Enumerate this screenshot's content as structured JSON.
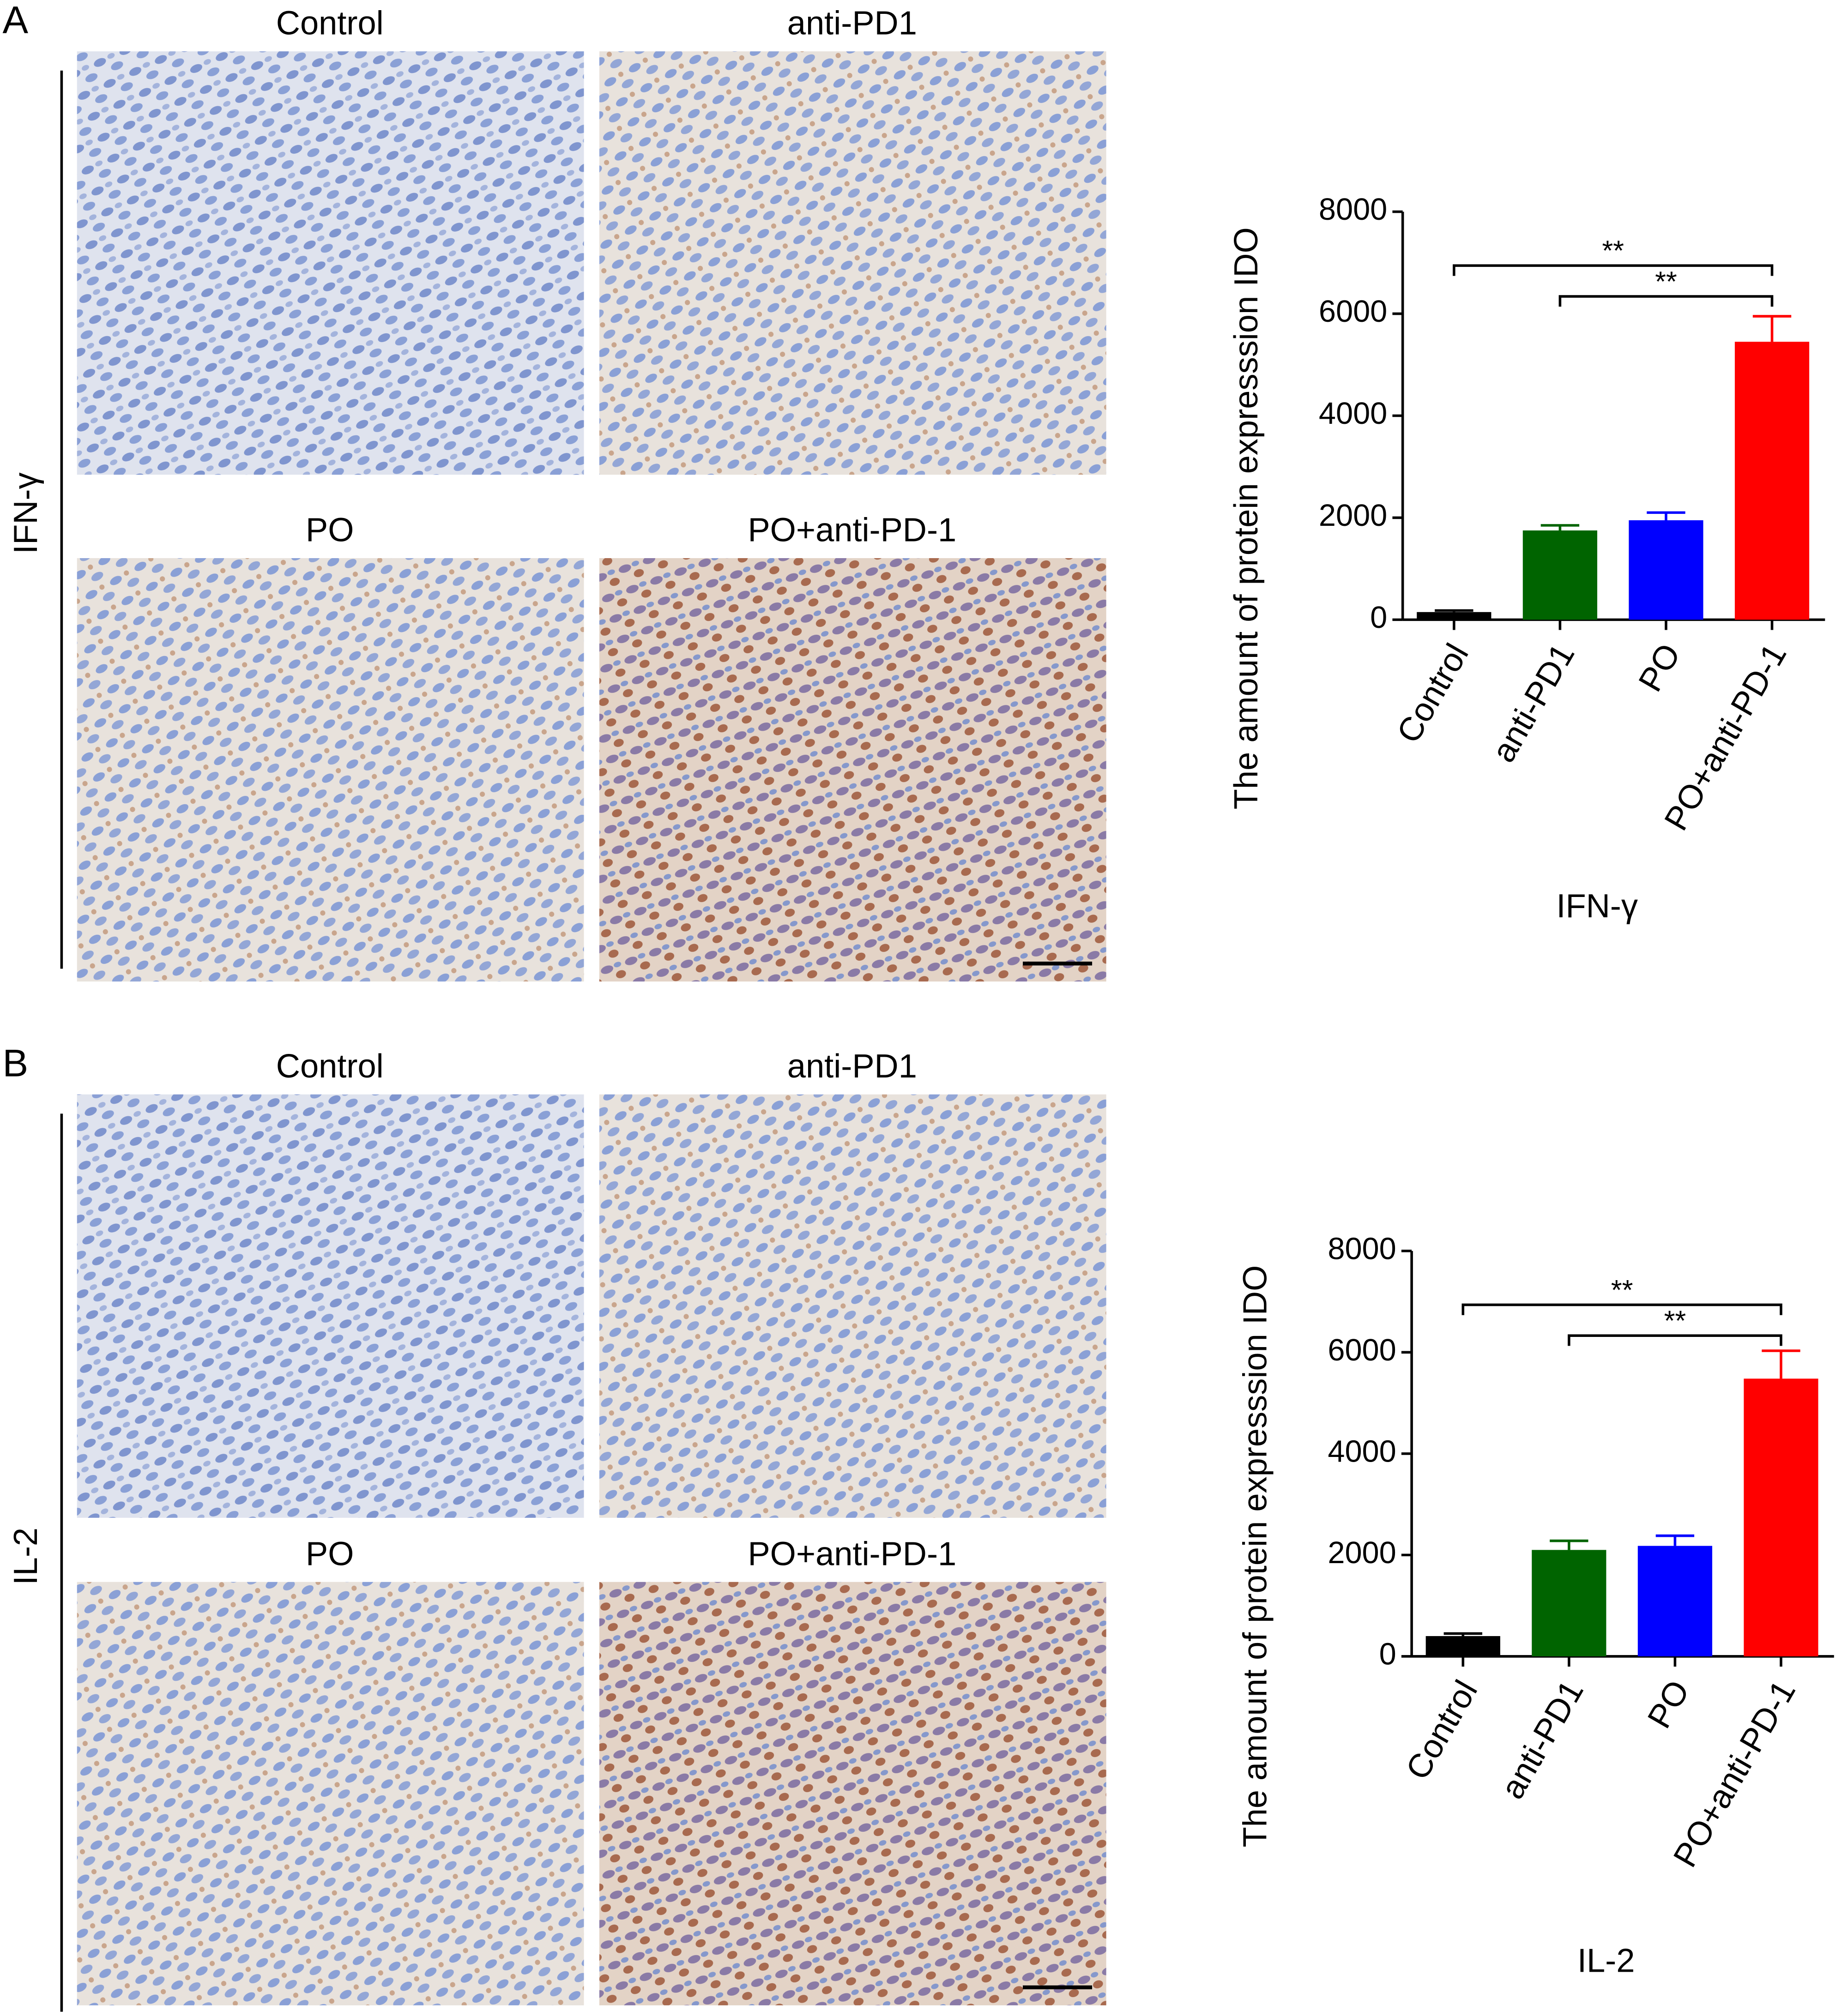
{
  "panels": [
    {
      "label": "A",
      "marker": "IFN-γ",
      "images": [
        "Control",
        "anti-PD1",
        "PO",
        "PO+anti-PD-1"
      ]
    },
    {
      "label": "B",
      "marker": "IL-2",
      "images": [
        "Control",
        "anti-PD1",
        "PO",
        "PO+anti-PD-1"
      ]
    }
  ],
  "chart_data": [
    {
      "type": "bar",
      "y_label": "The amount of protein expresssion IDO",
      "x_label": "IFN-γ",
      "categories": [
        "Control",
        "anti-PD1",
        "PO",
        "PO+anti-PD-1"
      ],
      "values": [
        150,
        1750,
        1950,
        5450
      ],
      "errors": [
        30,
        100,
        150,
        500
      ],
      "colors": [
        "#000000",
        "#006400",
        "#0000ff",
        "#ff0000"
      ],
      "ylim": [
        0,
        8000
      ],
      "yticks": [
        0,
        2000,
        4000,
        6000,
        8000
      ],
      "annotations": [
        {
          "text": "**",
          "from": "Control",
          "to": "PO+anti-PD-1"
        },
        {
          "text": "**",
          "from": "anti-PD1",
          "to": "PO+anti-PD-1"
        }
      ]
    },
    {
      "type": "bar",
      "y_label": "The amount of protein expresssion IDO",
      "x_label": "IL-2",
      "categories": [
        "Control",
        "anti-PD1",
        "PO",
        "PO+anti-PD-1"
      ],
      "values": [
        400,
        2100,
        2180,
        5480
      ],
      "errors": [
        50,
        180,
        200,
        550
      ],
      "colors": [
        "#000000",
        "#006400",
        "#0000ff",
        "#ff0000"
      ],
      "ylim": [
        0,
        8000
      ],
      "yticks": [
        0,
        2000,
        4000,
        6000,
        8000
      ],
      "annotations": [
        {
          "text": "**",
          "from": "Control",
          "to": "PO+anti-PD-1"
        },
        {
          "text": "**",
          "from": "anti-PD1",
          "to": "PO+anti-PD-1"
        }
      ]
    }
  ]
}
